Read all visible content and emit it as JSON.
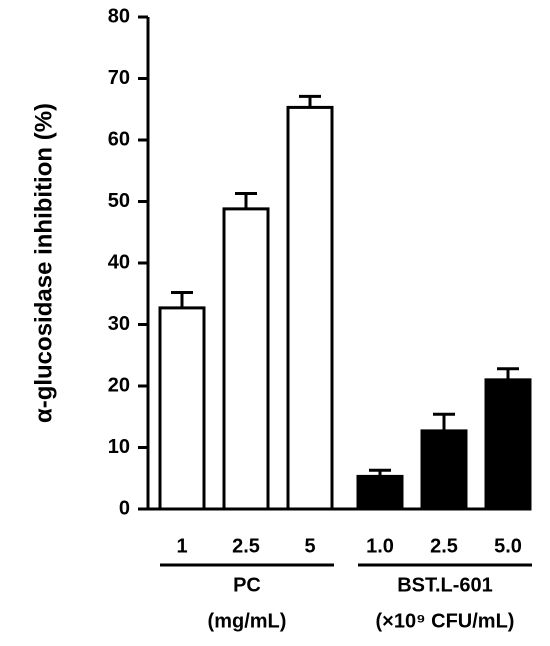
{
  "chart_data": {
    "type": "bar",
    "ylabel": "α-glucosidase inhibition (%)",
    "ylim": [
      0,
      80
    ],
    "yticks": [
      0,
      10,
      20,
      30,
      40,
      50,
      60,
      70,
      80
    ],
    "groups": [
      {
        "name": "PC",
        "unit": "(mg/mL)",
        "color": "#ffffff",
        "categories": [
          "1",
          "2.5",
          "5"
        ],
        "values": [
          32.7,
          48.8,
          65.3
        ],
        "errors": [
          2.5,
          2.5,
          1.8
        ]
      },
      {
        "name": "BST.L-601",
        "unit": "(×10⁹ CFU/mL)",
        "color": "#000000",
        "categories": [
          "1.0",
          "2.5",
          "5.0"
        ],
        "values": [
          5.3,
          12.7,
          21.0
        ],
        "errors": [
          1.0,
          2.7,
          1.8
        ]
      }
    ]
  }
}
